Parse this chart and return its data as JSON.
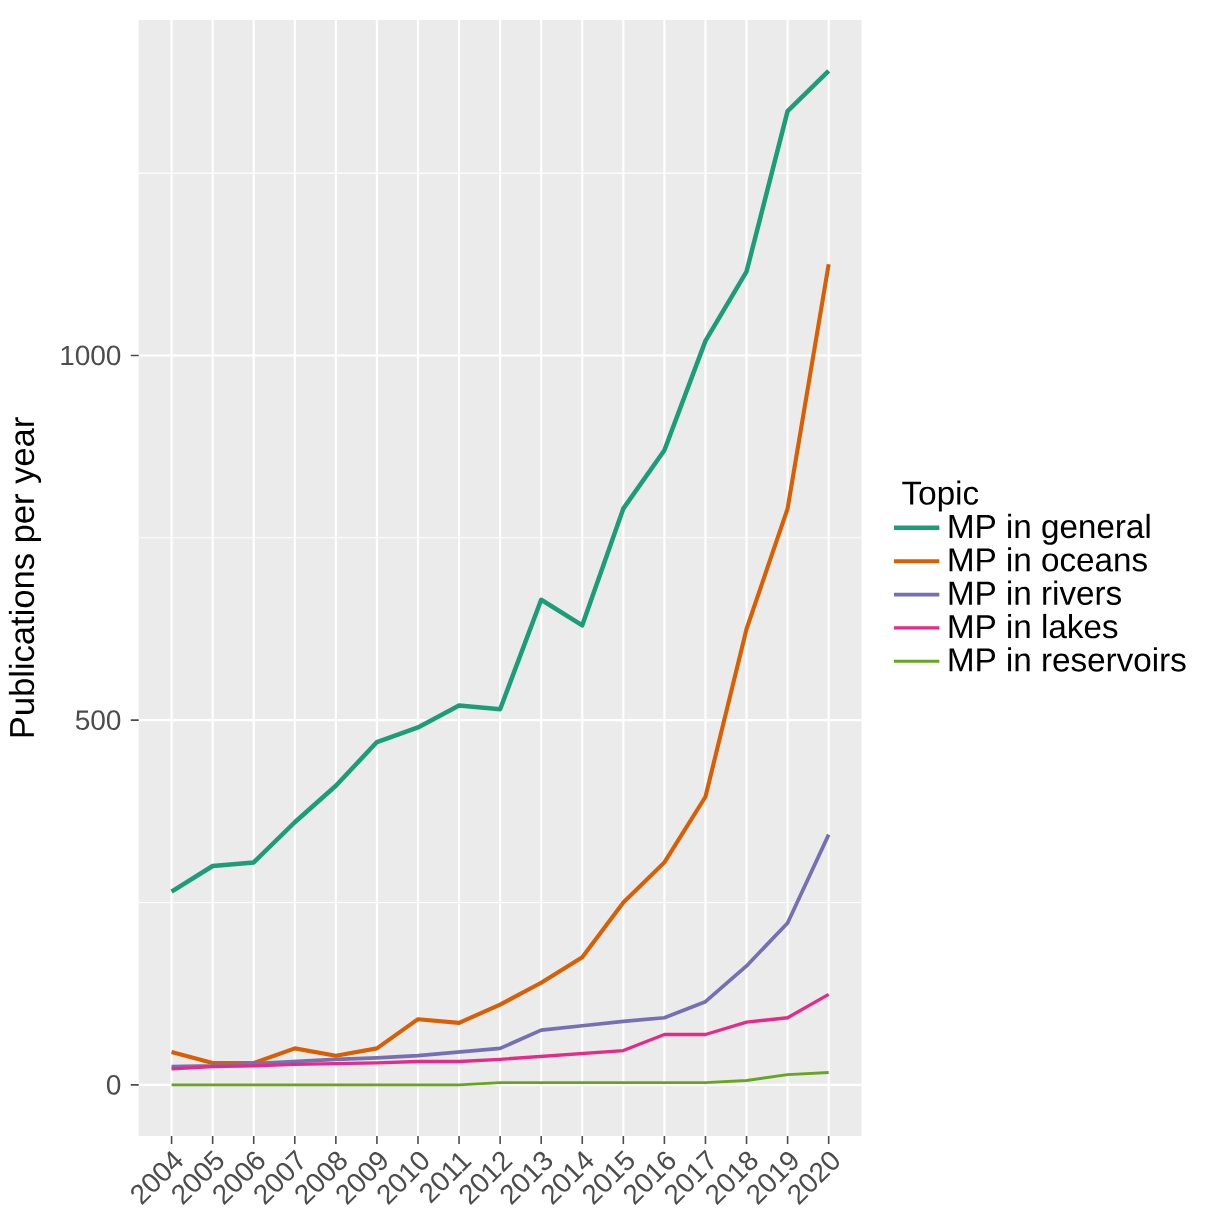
{
  "chart_data": {
    "type": "line",
    "ylabel": "Publications per year",
    "legend_title": "Topic",
    "legend": "right",
    "grid": true,
    "line_style": "solid",
    "x": [
      2004,
      2005,
      2006,
      2007,
      2008,
      2009,
      2010,
      2011,
      2012,
      2013,
      2014,
      2015,
      2016,
      2017,
      2018,
      2019,
      2020
    ],
    "xlim": [
      2003.2,
      2020.8
    ],
    "xticks": [
      2004,
      2005,
      2006,
      2007,
      2008,
      2009,
      2010,
      2011,
      2012,
      2013,
      2014,
      2015,
      2016,
      2017,
      2018,
      2019,
      2020
    ],
    "ylim": [
      -70,
      1460
    ],
    "yticks": [
      0,
      500,
      1000
    ],
    "series": [
      {
        "name": "MP in general",
        "color": "#1b9e77",
        "values": [
          265,
          300,
          305,
          360,
          410,
          470,
          490,
          520,
          515,
          665,
          630,
          790,
          870,
          1020,
          1115,
          1335,
          1390
        ]
      },
      {
        "name": "MP in oceans",
        "color": "#d95f02",
        "values": [
          45,
          30,
          30,
          50,
          40,
          50,
          90,
          85,
          110,
          140,
          175,
          250,
          305,
          395,
          625,
          790,
          1125
        ]
      },
      {
        "name": "MP in rivers",
        "color": "#7570b3",
        "values": [
          25,
          26,
          29,
          32,
          35,
          37,
          40,
          45,
          50,
          75,
          81,
          87,
          92,
          114,
          163,
          222,
          343
        ]
      },
      {
        "name": "MP in lakes",
        "color": "#e7298a",
        "values": [
          22,
          25,
          26,
          28,
          29,
          30,
          32,
          32,
          35,
          39,
          43,
          47,
          69,
          69,
          86,
          92,
          124
        ]
      },
      {
        "name": "MP in reservoirs",
        "color": "#66a61e",
        "values": [
          0,
          0,
          0,
          0,
          0,
          0,
          0,
          0,
          3,
          3,
          3,
          3,
          3,
          3,
          6,
          14,
          17
        ]
      }
    ]
  }
}
